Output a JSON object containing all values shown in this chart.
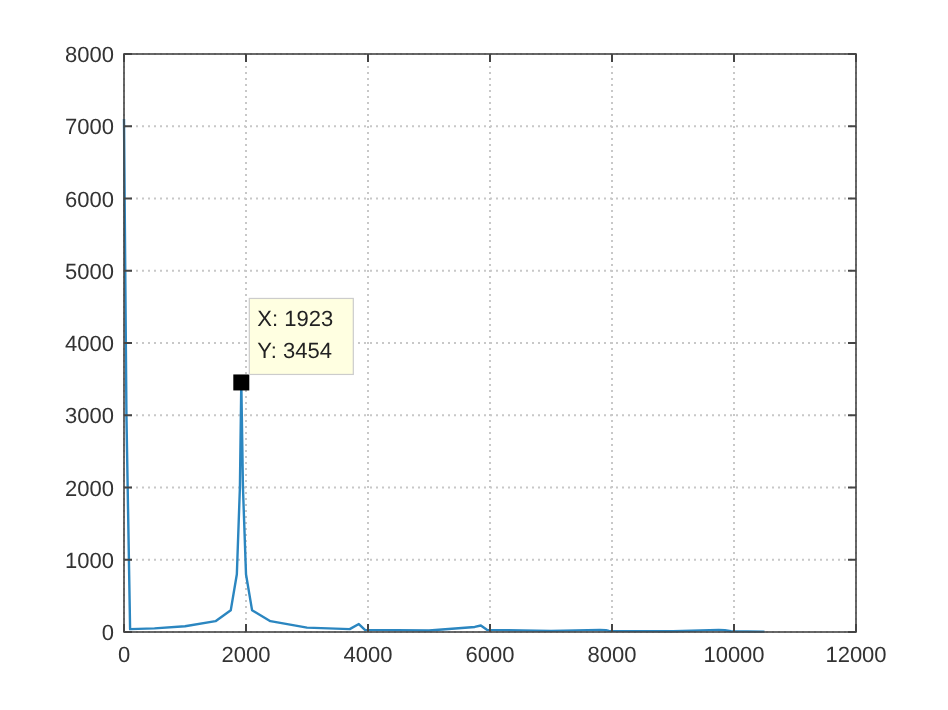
{
  "chart_data": {
    "type": "line",
    "x": [
      0,
      40,
      100,
      500,
      1000,
      1500,
      1750,
      1850,
      1900,
      1923,
      1950,
      2000,
      2100,
      2400,
      3000,
      3700,
      3850,
      3950,
      5000,
      5750,
      5850,
      5950,
      7000,
      7800,
      7900,
      7950,
      9000,
      9750,
      9850,
      9950,
      10500
    ],
    "series": [
      {
        "color": "#2b86c0",
        "values": [
          7100,
          3000,
          40,
          50,
          80,
          150,
          300,
          800,
          2000,
          3454,
          2000,
          800,
          300,
          150,
          60,
          40,
          110,
          30,
          20,
          70,
          90,
          30,
          15,
          30,
          25,
          15,
          10,
          30,
          25,
          10,
          5
        ]
      }
    ],
    "xlim": [
      0,
      12000
    ],
    "xticks": [
      0,
      2000,
      4000,
      6000,
      8000,
      10000,
      12000
    ],
    "ylim": [
      0,
      8000
    ],
    "yticks": [
      0,
      1000,
      2000,
      3000,
      4000,
      5000,
      6000,
      7000,
      8000
    ],
    "grid": true,
    "line_style": "solid",
    "annotations": [
      {
        "text": "X: 1923\nY: 3454",
        "x": 1923,
        "y": 3454
      }
    ]
  }
}
